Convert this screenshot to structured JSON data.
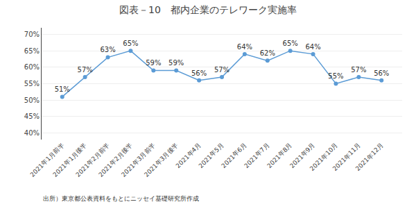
{
  "chart_data": {
    "type": "line",
    "title": "図表－10　都内企業のテレワーク実施率",
    "annotations": [
      "出所）東京都公表資料をもとにニッセイ基礎研究所作成"
    ],
    "categories": [
      "2021年1月前半",
      "2021年1月後半",
      "2021年2月前半",
      "2021年2月後半",
      "2021年3月前半",
      "2021年3月後半",
      "2021年4月",
      "2021年5月",
      "2021年6月",
      "2021年7月",
      "2021年8月",
      "2021年9月",
      "2021年10月",
      "2021年11月",
      "2021年12月"
    ],
    "values": [
      51,
      57,
      63,
      65,
      59,
      59,
      56,
      57,
      64,
      62,
      65,
      64,
      55,
      57,
      56
    ],
    "value_labels": [
      "51%",
      "57%",
      "63%",
      "65%",
      "59%",
      "59%",
      "56%",
      "57%",
      "64%",
      "62%",
      "65%",
      "64%",
      "55%",
      "57%",
      "56%"
    ],
    "data_labels": true,
    "color": "#5B9BD5",
    "marker": "circle",
    "ylim": [
      38,
      72
    ],
    "yticks": [
      {
        "value": 40,
        "label": "40%"
      },
      {
        "value": 45,
        "label": "45%"
      },
      {
        "value": 50,
        "label": "50%"
      },
      {
        "value": 55,
        "label": "55%"
      },
      {
        "value": 60,
        "label": "60%"
      },
      {
        "value": 65,
        "label": "65%"
      },
      {
        "value": 70,
        "label": "70%"
      }
    ],
    "grid": true
  }
}
